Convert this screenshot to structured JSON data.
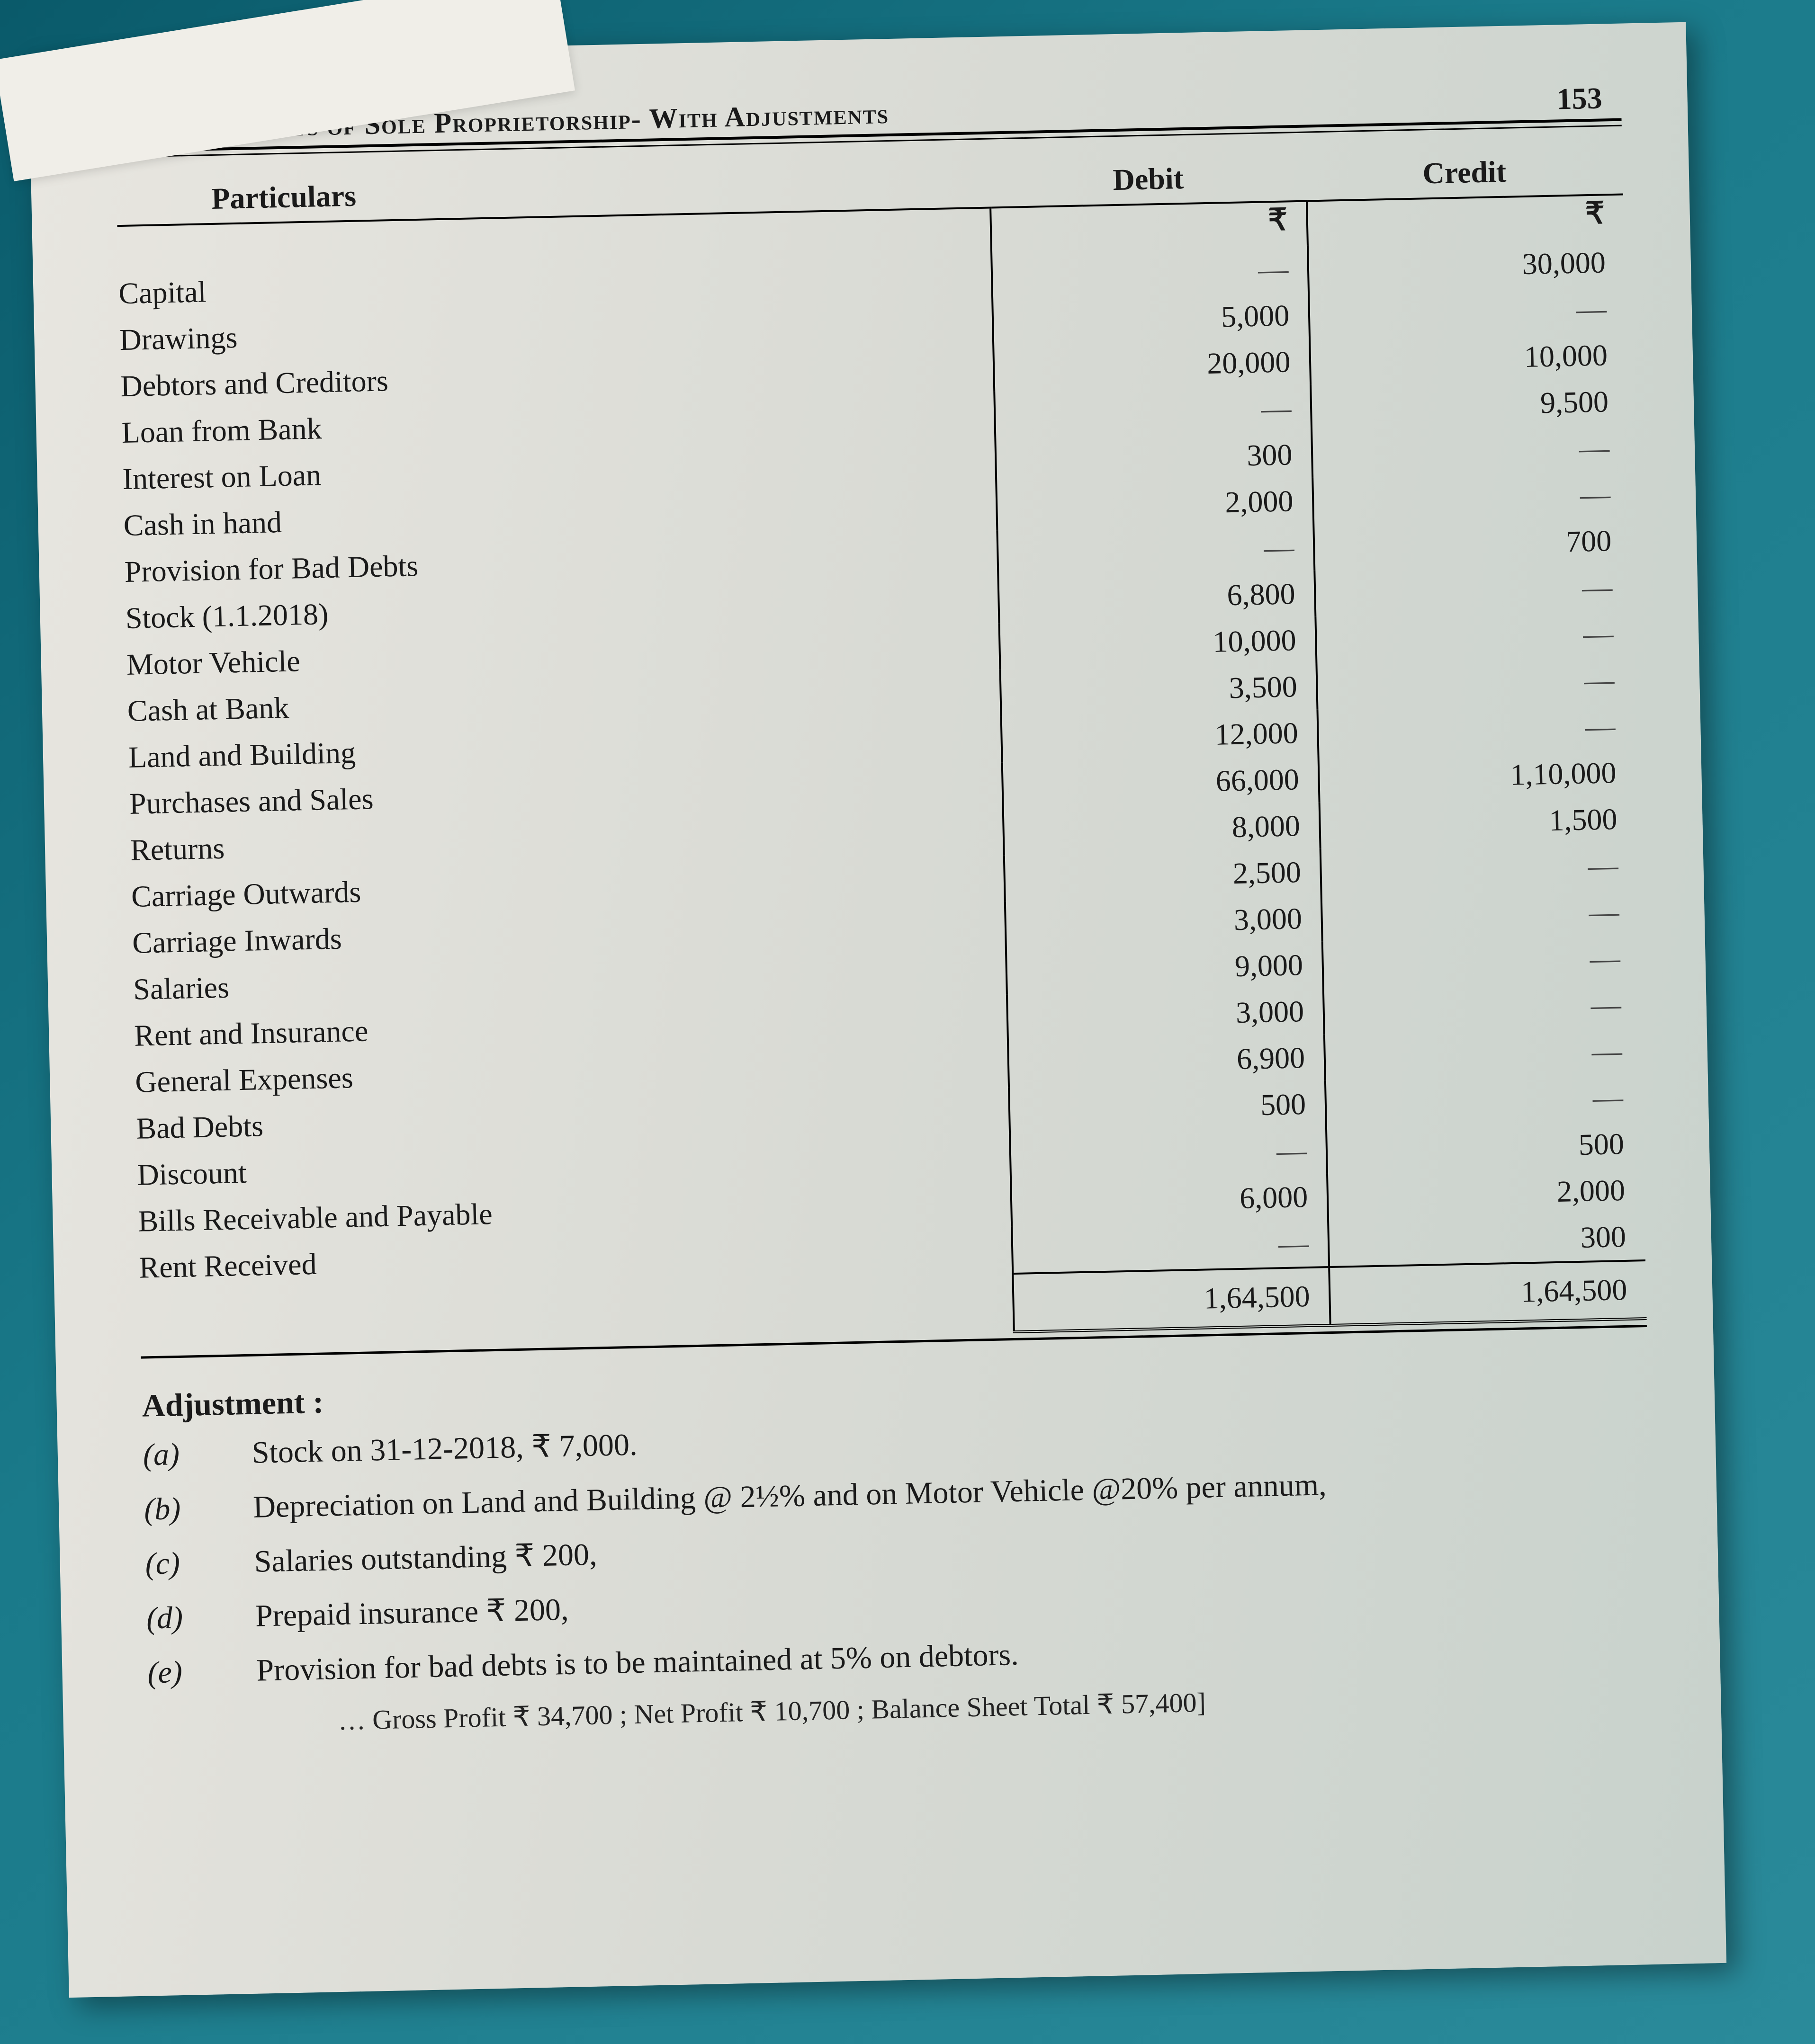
{
  "header": {
    "running_title": "Final Accounts of Sole Proprietorship- With Adjustments",
    "page_number": "153"
  },
  "table": {
    "col_particulars": "Particulars",
    "col_debit": "Debit",
    "col_credit": "Credit",
    "currency": "₹",
    "rows": [
      {
        "label": "Capital",
        "debit": "—",
        "credit": "30,000"
      },
      {
        "label": "Drawings",
        "debit": "5,000",
        "credit": "—"
      },
      {
        "label": "Debtors and Creditors",
        "debit": "20,000",
        "credit": "10,000"
      },
      {
        "label": "Loan from Bank",
        "debit": "—",
        "credit": "9,500"
      },
      {
        "label": "Interest on Loan",
        "debit": "300",
        "credit": "—"
      },
      {
        "label": "Cash in hand",
        "debit": "2,000",
        "credit": "—"
      },
      {
        "label": "Provision for Bad Debts",
        "debit": "—",
        "credit": "700"
      },
      {
        "label": "Stock (1.1.2018)",
        "debit": "6,800",
        "credit": "—"
      },
      {
        "label": "Motor Vehicle",
        "debit": "10,000",
        "credit": "—"
      },
      {
        "label": "Cash at Bank",
        "debit": "3,500",
        "credit": "—"
      },
      {
        "label": "Land and Building",
        "debit": "12,000",
        "credit": "—"
      },
      {
        "label": "Purchases and Sales",
        "debit": "66,000",
        "credit": "1,10,000"
      },
      {
        "label": "Returns",
        "debit": "8,000",
        "credit": "1,500"
      },
      {
        "label": "Carriage Outwards",
        "debit": "2,500",
        "credit": "—"
      },
      {
        "label": "Carriage Inwards",
        "debit": "3,000",
        "credit": "—"
      },
      {
        "label": "Salaries",
        "debit": "9,000",
        "credit": "—"
      },
      {
        "label": "Rent and Insurance",
        "debit": "3,000",
        "credit": "—"
      },
      {
        "label": "General Expenses",
        "debit": "6,900",
        "credit": "—"
      },
      {
        "label": "Bad Debts",
        "debit": "500",
        "credit": "—"
      },
      {
        "label": "Discount",
        "debit": "—",
        "credit": "500"
      },
      {
        "label": "Bills Receivable and Payable",
        "debit": "6,000",
        "credit": "2,000"
      },
      {
        "label": "Rent Received",
        "debit": "—",
        "credit": "300"
      }
    ],
    "total_debit": "1,64,500",
    "total_credit": "1,64,500"
  },
  "adjustments": {
    "heading": "Adjustment :",
    "items": [
      {
        "marker": "(a)",
        "text": "Stock on 31-12-2018, ₹ 7,000."
      },
      {
        "marker": "(b)",
        "text": "Depreciation on Land and Building @ 2½% and on Motor Vehicle @20% per annum,"
      },
      {
        "marker": "(c)",
        "text": "Salaries outstanding ₹ 200,"
      },
      {
        "marker": "(d)",
        "text": "Prepaid insurance ₹ 200,"
      },
      {
        "marker": "(e)",
        "text": "Provision for bad debts is to be maintained at 5% on debtors."
      }
    ],
    "answer_line": "… Gross Profit ₹ 34,700 ; Net Profit ₹ 10,700 ; Balance Sheet Total ₹ 57,400]"
  }
}
